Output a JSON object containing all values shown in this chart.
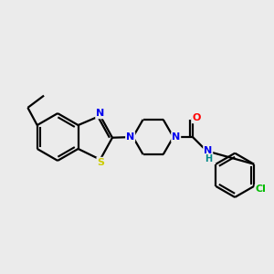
{
  "background_color": "#ebebeb",
  "bond_color": "#000000",
  "atom_colors": {
    "N": "#0000ee",
    "S": "#cccc00",
    "O": "#ff0000",
    "Cl": "#00bb00",
    "H": "#008888",
    "C": "#000000"
  },
  "figsize": [
    3.0,
    3.0
  ],
  "dpi": 100
}
